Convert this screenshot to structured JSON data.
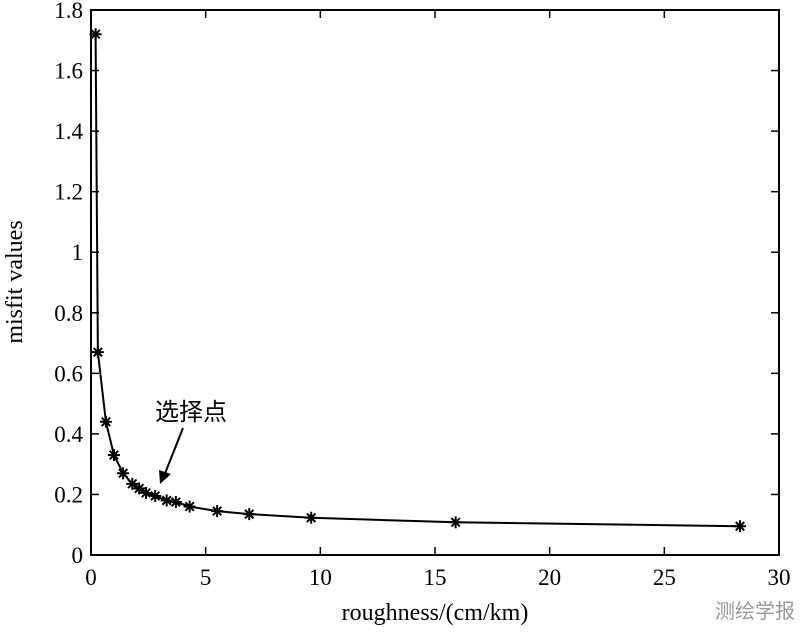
{
  "chart_data": {
    "type": "line",
    "xlabel": "roughness/(cm/km)",
    "ylabel": "misfit values",
    "annotation": "选择点",
    "watermark": "测绘学报",
    "x": [
      0.2,
      0.3,
      0.65,
      1.0,
      1.4,
      1.8,
      2.1,
      2.4,
      2.8,
      3.3,
      3.7,
      4.3,
      5.5,
      6.9,
      9.6,
      15.9,
      28.3
    ],
    "values": [
      1.72,
      0.67,
      0.44,
      0.33,
      0.27,
      0.235,
      0.22,
      0.205,
      0.195,
      0.18,
      0.175,
      0.16,
      0.145,
      0.135,
      0.123,
      0.108,
      0.095
    ],
    "color": "#000000",
    "xlim": [
      0,
      30
    ],
    "xticks": [
      0,
      5,
      10,
      15,
      20,
      25,
      30
    ],
    "ylim": [
      0,
      1.8
    ],
    "yticks": [
      0,
      0.2,
      0.4,
      0.6,
      0.8,
      1,
      1.2,
      1.4,
      1.6,
      1.8
    ]
  }
}
